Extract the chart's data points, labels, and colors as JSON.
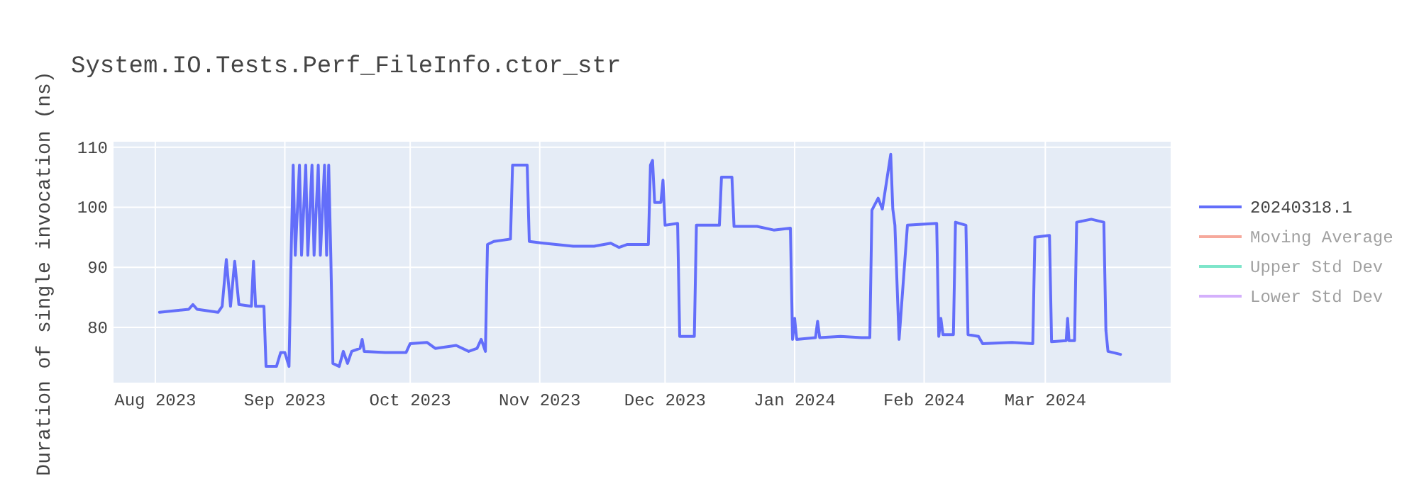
{
  "chart_data": {
    "type": "line",
    "title": "System.IO.Tests.Perf_FileInfo.ctor_str",
    "ylabel": "Duration of single invocation (ns)",
    "xlim": [
      "2023-07-22",
      "2024-03-31"
    ],
    "xticks": [
      {
        "value": "2023-08-01",
        "label": "Aug 2023"
      },
      {
        "value": "2023-09-01",
        "label": "Sep 2023"
      },
      {
        "value": "2023-10-01",
        "label": "Oct 2023"
      },
      {
        "value": "2023-11-01",
        "label": "Nov 2023"
      },
      {
        "value": "2023-12-01",
        "label": "Dec 2023"
      },
      {
        "value": "2024-01-01",
        "label": "Jan 2024"
      },
      {
        "value": "2024-02-01",
        "label": "Feb 2024"
      },
      {
        "value": "2024-03-01",
        "label": "Mar 2024"
      }
    ],
    "ylim": [
      70.8,
      110.9
    ],
    "yticks": [
      80,
      90,
      100,
      110
    ],
    "grid": true,
    "legend": "top right",
    "line_style": "solid",
    "marker": "none",
    "series": [
      {
        "name": "20240318.1",
        "color": "#636efa",
        "x": [
          "2023-08-02",
          "2023-08-09",
          "2023-08-10",
          "2023-08-11",
          "2023-08-16",
          "2023-08-17",
          "2023-08-18",
          "2023-08-19",
          "2023-08-20",
          "2023-08-21",
          "2023-08-24",
          "2023-08-24T12:00",
          "2023-08-25",
          "2023-08-27",
          "2023-08-27T12:00",
          "2023-08-30",
          "2023-08-31",
          "2023-09-01",
          "2023-09-02",
          "2023-09-02T12:00",
          "2023-09-03",
          "2023-09-03T12:00",
          "2023-09-04T12:00",
          "2023-09-05",
          "2023-09-06",
          "2023-09-06T12:00",
          "2023-09-07T12:00",
          "2023-09-08",
          "2023-09-09",
          "2023-09-09T12:00",
          "2023-09-10T12:00",
          "2023-09-11",
          "2023-09-11T12:00",
          "2023-09-12",
          "2023-09-12T12:00",
          "2023-09-14",
          "2023-09-15",
          "2023-09-16",
          "2023-09-17",
          "2023-09-19",
          "2023-09-19T12:00",
          "2023-09-20",
          "2023-09-25",
          "2023-09-30",
          "2023-10-01",
          "2023-10-05",
          "2023-10-07",
          "2023-10-12",
          "2023-10-15",
          "2023-10-17",
          "2023-10-18",
          "2023-10-19",
          "2023-10-19T12:00",
          "2023-10-21",
          "2023-10-25",
          "2023-10-25T12:00",
          "2023-10-29",
          "2023-10-29T12:00",
          "2023-11-02",
          "2023-11-09",
          "2023-11-14",
          "2023-11-18",
          "2023-11-20",
          "2023-11-22",
          "2023-11-27",
          "2023-11-27T12:00",
          "2023-11-28",
          "2023-11-28T12:00",
          "2023-11-30",
          "2023-11-30T12:00",
          "2023-12-01",
          "2023-12-04",
          "2023-12-04T12:00",
          "2023-12-08",
          "2023-12-08T12:00",
          "2023-12-14",
          "2023-12-14T12:00",
          "2023-12-17",
          "2023-12-17T12:00",
          "2023-12-23",
          "2023-12-27",
          "2023-12-31",
          "2023-12-31T12:00",
          "2024-01-01",
          "2024-01-01T12:00",
          "2024-01-06",
          "2024-01-06T12:00",
          "2024-01-07",
          "2024-01-12",
          "2024-01-17",
          "2024-01-19",
          "2024-01-19T12:00",
          "2024-01-21",
          "2024-01-22",
          "2024-01-24",
          "2024-01-24T12:00",
          "2024-01-25",
          "2024-01-26",
          "2024-01-28",
          "2024-02-04",
          "2024-02-04T12:00",
          "2024-02-05",
          "2024-02-05T12:00",
          "2024-02-08",
          "2024-02-08T12:00",
          "2024-02-11",
          "2024-02-11T12:00",
          "2024-02-14",
          "2024-02-15",
          "2024-02-22",
          "2024-02-27",
          "2024-02-27T12:00",
          "2024-03-02",
          "2024-03-02T12:00",
          "2024-03-06",
          "2024-03-06T08:00",
          "2024-03-06T16:00",
          "2024-03-08",
          "2024-03-08T12:00",
          "2024-03-12",
          "2024-03-15",
          "2024-03-15T12:00",
          "2024-03-16",
          "2024-03-19"
        ],
        "values": [
          82.5,
          83,
          83.8,
          83,
          82.5,
          83.5,
          91.3,
          83.5,
          91,
          83.8,
          83.5,
          91,
          83.5,
          83.5,
          73.5,
          73.5,
          75.8,
          75.8,
          73.5,
          92,
          107,
          92,
          107,
          92,
          107,
          92,
          107,
          92,
          107,
          92,
          107,
          92,
          107,
          92,
          74,
          73.5,
          76,
          74,
          76,
          76.5,
          78,
          76,
          75.8,
          75.8,
          77.3,
          77.5,
          76.5,
          77,
          76,
          76.5,
          78,
          76,
          93.8,
          94.3,
          94.7,
          107,
          107,
          94.3,
          94,
          93.5,
          93.5,
          94,
          93.3,
          93.8,
          93.8,
          107,
          107.8,
          100.8,
          100.8,
          104.5,
          97,
          97.3,
          78.5,
          78.5,
          97,
          97,
          105,
          105,
          96.8,
          96.8,
          96.2,
          96.5,
          78,
          81.5,
          78,
          78.3,
          81,
          78.3,
          78.5,
          78.3,
          78.3,
          99.5,
          101.5,
          99.7,
          108.8,
          99.7,
          97,
          78,
          97,
          97.3,
          78.5,
          81.5,
          78.8,
          78.8,
          97.5,
          97,
          78.8,
          78.5,
          77.3,
          77.5,
          77.3,
          95,
          95.3,
          77.6,
          77.8,
          81.5,
          77.8,
          77.8,
          97.5,
          98,
          97.5,
          79.5,
          76,
          75.5
        ]
      },
      {
        "name": "Moving Average",
        "color": "#ef553b"
      },
      {
        "name": "Upper Std Dev",
        "color": "#00cc96"
      },
      {
        "name": "Lower Std Dev",
        "color": "#ab63fa"
      }
    ]
  }
}
